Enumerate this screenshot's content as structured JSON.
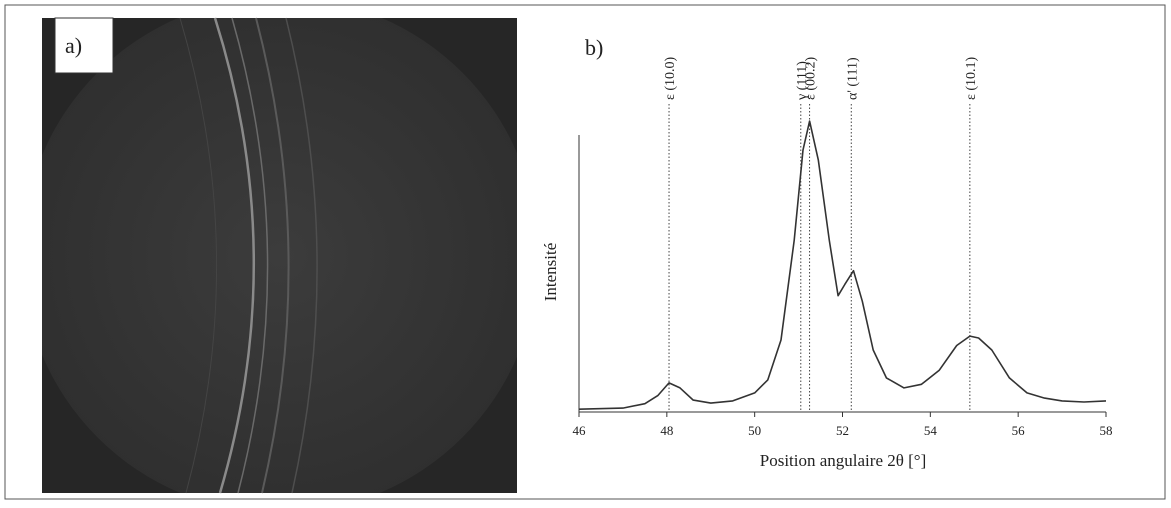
{
  "panel_a": {
    "label": "a)"
  },
  "chart_data": {
    "type": "line",
    "panel_label": "b)",
    "x_label": "Position angulaire 2θ [°]",
    "y_label": "Intensité",
    "x": [
      46,
      47,
      47.5,
      47.8,
      48.05,
      48.3,
      48.6,
      49,
      49.5,
      50,
      50.3,
      50.6,
      50.9,
      51.1,
      51.25,
      51.45,
      51.7,
      51.9,
      52.05,
      52.25,
      52.45,
      52.7,
      53,
      53.4,
      53.8,
      54.2,
      54.6,
      54.9,
      55.1,
      55.4,
      55.8,
      56.2,
      56.6,
      57,
      57.5,
      58
    ],
    "values": [
      1,
      1.4,
      3,
      6,
      10.5,
      8.7,
      4.3,
      3.2,
      4,
      6.9,
      11.6,
      26,
      62,
      94.6,
      105,
      91,
      62,
      42,
      46,
      51,
      40,
      22.4,
      12.3,
      8.7,
      10,
      15,
      24,
      27.4,
      26.7,
      22.4,
      12.3,
      6.9,
      5,
      4,
      3.6,
      4
    ],
    "color": "#333333",
    "xlim": [
      46,
      58
    ],
    "xticks": [
      46,
      48,
      50,
      52,
      54,
      56,
      58
    ],
    "ylim": [
      0,
      100
    ],
    "annotations": [
      {
        "x": 48.05,
        "label": "ε (10.0)"
      },
      {
        "x": 51.05,
        "label": "γ (111)"
      },
      {
        "x": 51.25,
        "label": "ε (00.2)"
      },
      {
        "x": 52.2,
        "label": "α' (111)"
      },
      {
        "x": 54.9,
        "label": "ε (10.1)"
      }
    ]
  }
}
